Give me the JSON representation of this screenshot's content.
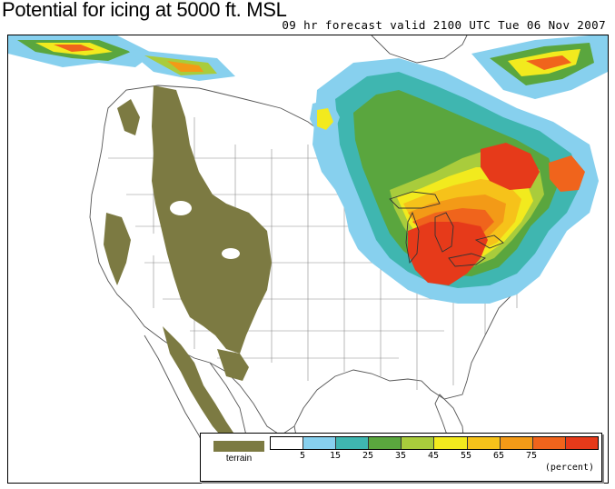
{
  "title": "Potential for icing at 5000 ft. MSL",
  "subtitle": "09 hr forecast valid 2100 UTC Tue 06 Nov 2007",
  "legend": {
    "terrain_label": "terrain",
    "terrain_color": "#7c7a42",
    "scale_colors": [
      "#ffffff",
      "#87d0ee",
      "#3fb6b0",
      "#5aa63e",
      "#a9cc3c",
      "#f2ea1e",
      "#f6c21a",
      "#f39a17",
      "#f0641c",
      "#e63a1a"
    ],
    "scale_labels": [
      "5",
      "15",
      "25",
      "35",
      "45",
      "55",
      "65",
      "75"
    ],
    "unit": "(percent)"
  },
  "colors": {
    "terrain": "#7c7a42",
    "boundary": "#8a8a8a",
    "coast": "#4a4a4a"
  }
}
